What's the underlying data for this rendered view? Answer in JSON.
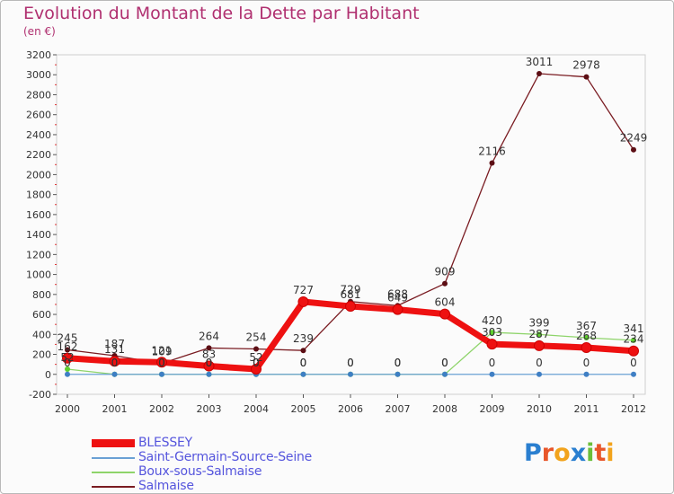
{
  "title": "Evolution du Montant de la Dette par Habitant",
  "unit": "(en €)",
  "logo": {
    "letters": [
      "P",
      "r",
      "o",
      "x",
      "i",
      "t",
      "i"
    ],
    "colors": [
      "#2a7fd0",
      "#e8562a",
      "#f2a31c",
      "#2a7fd0",
      "#6bbf3a",
      "#e8562a",
      "#f2a31c"
    ]
  },
  "chart_data": {
    "type": "line",
    "categories": [
      "2000",
      "2001",
      "2002",
      "2003",
      "2004",
      "2005",
      "2006",
      "2007",
      "2008",
      "2009",
      "2010",
      "2011",
      "2012"
    ],
    "ylim": [
      -200,
      3200
    ],
    "yticks": [
      -200,
      0,
      200,
      400,
      600,
      800,
      1000,
      1200,
      1400,
      1600,
      1800,
      2000,
      2200,
      2400,
      2600,
      2800,
      3000,
      3200
    ],
    "grid": false,
    "legend_position": "bottom-left",
    "series": [
      {
        "name": "Salmaise",
        "color": "#7a1c22",
        "values": [
          245,
          187,
          109,
          264,
          254,
          239,
          729,
          688,
          909,
          2116,
          3011,
          2978,
          2249
        ],
        "labels": [
          "245",
          "187",
          "109",
          "264",
          "254",
          "239",
          "729",
          "688",
          "909",
          "2116",
          "3011",
          "2978",
          "2249"
        ]
      },
      {
        "name": "Boux-sous-Salmaise",
        "color": "#8ed46a",
        "values": [
          52,
          0,
          0,
          0,
          0,
          0,
          0,
          0,
          0,
          420,
          399,
          367,
          341
        ],
        "labels": [
          "52",
          "0",
          "0",
          "0",
          "0",
          "0",
          "0",
          "0",
          "0",
          "420",
          "399",
          "367",
          "341"
        ]
      },
      {
        "name": "Saint-Germain-Source-Seine",
        "color": "#6aa0d4",
        "values": [
          0,
          0,
          0,
          0,
          0,
          0,
          0,
          0,
          0,
          0,
          0,
          0,
          0
        ],
        "labels": [
          "0",
          "0",
          "0",
          "0",
          "0",
          "0",
          "0",
          "0",
          "0",
          "0",
          "0",
          "0",
          "0"
        ]
      },
      {
        "name": "BLESSEY",
        "color": "#ee1111",
        "values": [
          162,
          131,
          121,
          83,
          52,
          727,
          681,
          649,
          604,
          303,
          287,
          268,
          234
        ],
        "labels": [
          "162",
          "131",
          "121",
          "83",
          "52",
          "727",
          "681",
          "649",
          "604",
          "303",
          "287",
          "268",
          "234"
        ]
      }
    ],
    "legend_order": [
      "BLESSEY",
      "Saint-Germain-Source-Seine",
      "Boux-sous-Salmaise",
      "Salmaise"
    ]
  }
}
